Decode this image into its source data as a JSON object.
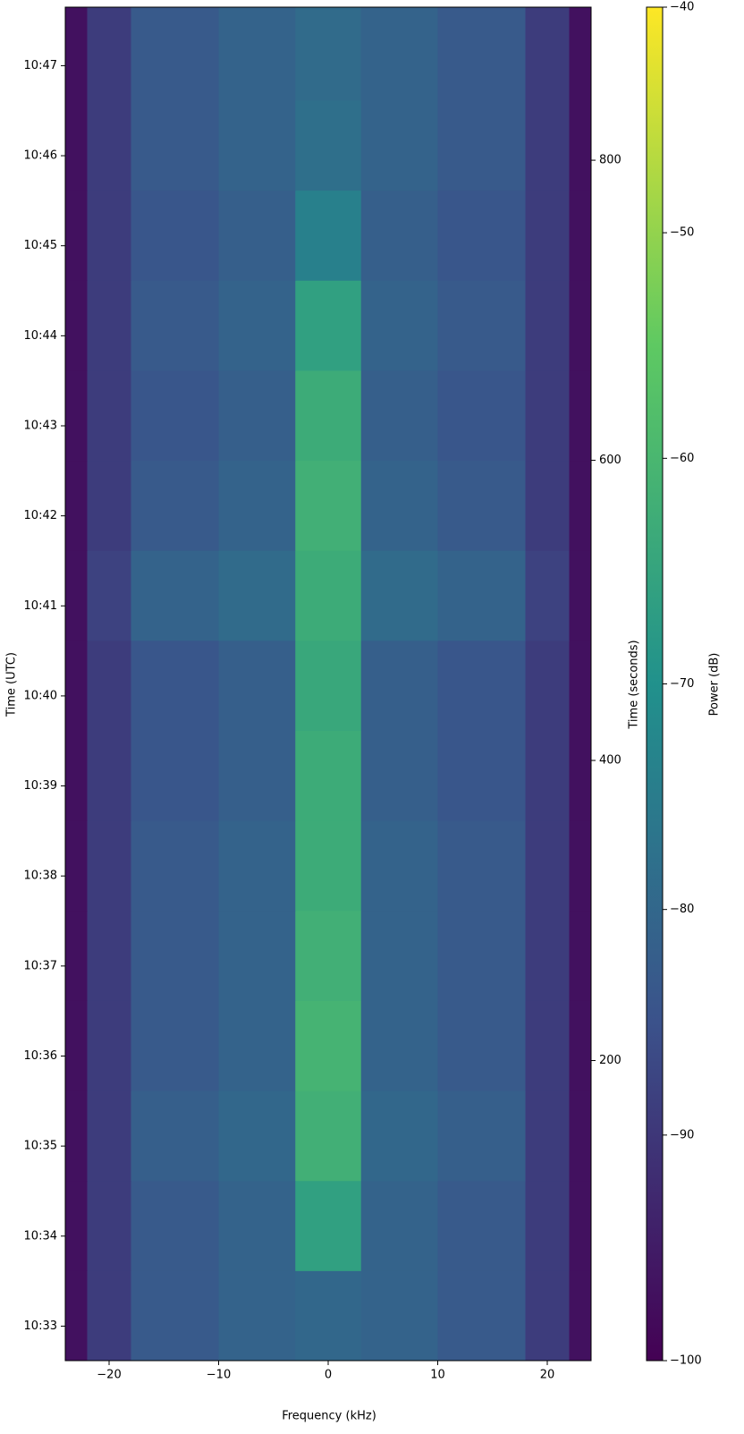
{
  "chart_data": {
    "type": "heatmap",
    "colormap": "viridis",
    "xlabel": "Frequency (kHz)",
    "ylabel": "Time (UTC)",
    "y2label": "Time (seconds)",
    "colorbar_label": "Power (dB)",
    "x_edges": [
      -24,
      -22,
      -18,
      -10,
      -3,
      3,
      10,
      18,
      22,
      24
    ],
    "y_edges": [
      0,
      60,
      120,
      180,
      240,
      300,
      360,
      420,
      480,
      540,
      600,
      660,
      720,
      780,
      840,
      902
    ],
    "values": [
      [
        -97,
        -89,
        -83,
        -81,
        -80,
        -81,
        -83,
        -89,
        -97
      ],
      [
        -97,
        -89,
        -83,
        -81,
        -66,
        -81,
        -83,
        -89,
        -97
      ],
      [
        -97,
        -89,
        -82,
        -80,
        -62,
        -80,
        -82,
        -89,
        -97
      ],
      [
        -97,
        -89,
        -83,
        -81,
        -61,
        -81,
        -83,
        -89,
        -97
      ],
      [
        -97,
        -89,
        -83,
        -81,
        -62,
        -81,
        -83,
        -89,
        -97
      ],
      [
        -97,
        -89,
        -83,
        -81,
        -63,
        -81,
        -83,
        -89,
        -97
      ],
      [
        -97,
        -89,
        -84,
        -82,
        -63,
        -82,
        -84,
        -89,
        -97
      ],
      [
        -97,
        -89,
        -84,
        -82,
        -64,
        -82,
        -84,
        -89,
        -97
      ],
      [
        -97,
        -88,
        -81,
        -79,
        -63,
        -79,
        -81,
        -88,
        -97
      ],
      [
        -97,
        -89,
        -83,
        -81,
        -62,
        -81,
        -83,
        -89,
        -97
      ],
      [
        -97,
        -89,
        -84,
        -82,
        -63,
        -82,
        -84,
        -89,
        -97
      ],
      [
        -97,
        -89,
        -83,
        -81,
        -66,
        -81,
        -83,
        -89,
        -97
      ],
      [
        -97,
        -89,
        -84,
        -82,
        -74,
        -82,
        -84,
        -89,
        -97
      ],
      [
        -97,
        -89,
        -83,
        -81,
        -78,
        -81,
        -83,
        -89,
        -97
      ],
      [
        -97,
        -89,
        -83,
        -81,
        -79,
        -81,
        -83,
        -89,
        -97
      ]
    ],
    "xlim": [
      -24,
      24
    ],
    "xticks": [
      {
        "value": -20,
        "label": "−20"
      },
      {
        "value": -10,
        "label": "−10"
      },
      0,
      10,
      20
    ],
    "ylim": [
      0,
      902
    ],
    "yticks": [
      {
        "value": 23,
        "label": "10:33"
      },
      {
        "value": 83,
        "label": "10:34"
      },
      {
        "value": 143,
        "label": "10:35"
      },
      {
        "value": 203,
        "label": "10:36"
      },
      {
        "value": 263,
        "label": "10:37"
      },
      {
        "value": 323,
        "label": "10:38"
      },
      {
        "value": 383,
        "label": "10:39"
      },
      {
        "value": 443,
        "label": "10:40"
      },
      {
        "value": 503,
        "label": "10:41"
      },
      {
        "value": 563,
        "label": "10:42"
      },
      {
        "value": 623,
        "label": "10:43"
      },
      {
        "value": 683,
        "label": "10:44"
      },
      {
        "value": 743,
        "label": "10:45"
      },
      {
        "value": 803,
        "label": "10:46"
      },
      {
        "value": 863,
        "label": "10:47"
      }
    ],
    "y2lim": [
      0,
      902
    ],
    "y2ticks": [
      200,
      400,
      600,
      800
    ],
    "clim": [
      -100,
      -40
    ],
    "cticks": [
      {
        "value": -100,
        "label": "−100"
      },
      {
        "value": -90,
        "label": "−90"
      },
      {
        "value": -80,
        "label": "−80"
      },
      {
        "value": -70,
        "label": "−70"
      },
      {
        "value": -60,
        "label": "−60"
      },
      {
        "value": -50,
        "label": "−50"
      },
      {
        "value": -40,
        "label": "−40"
      }
    ]
  }
}
